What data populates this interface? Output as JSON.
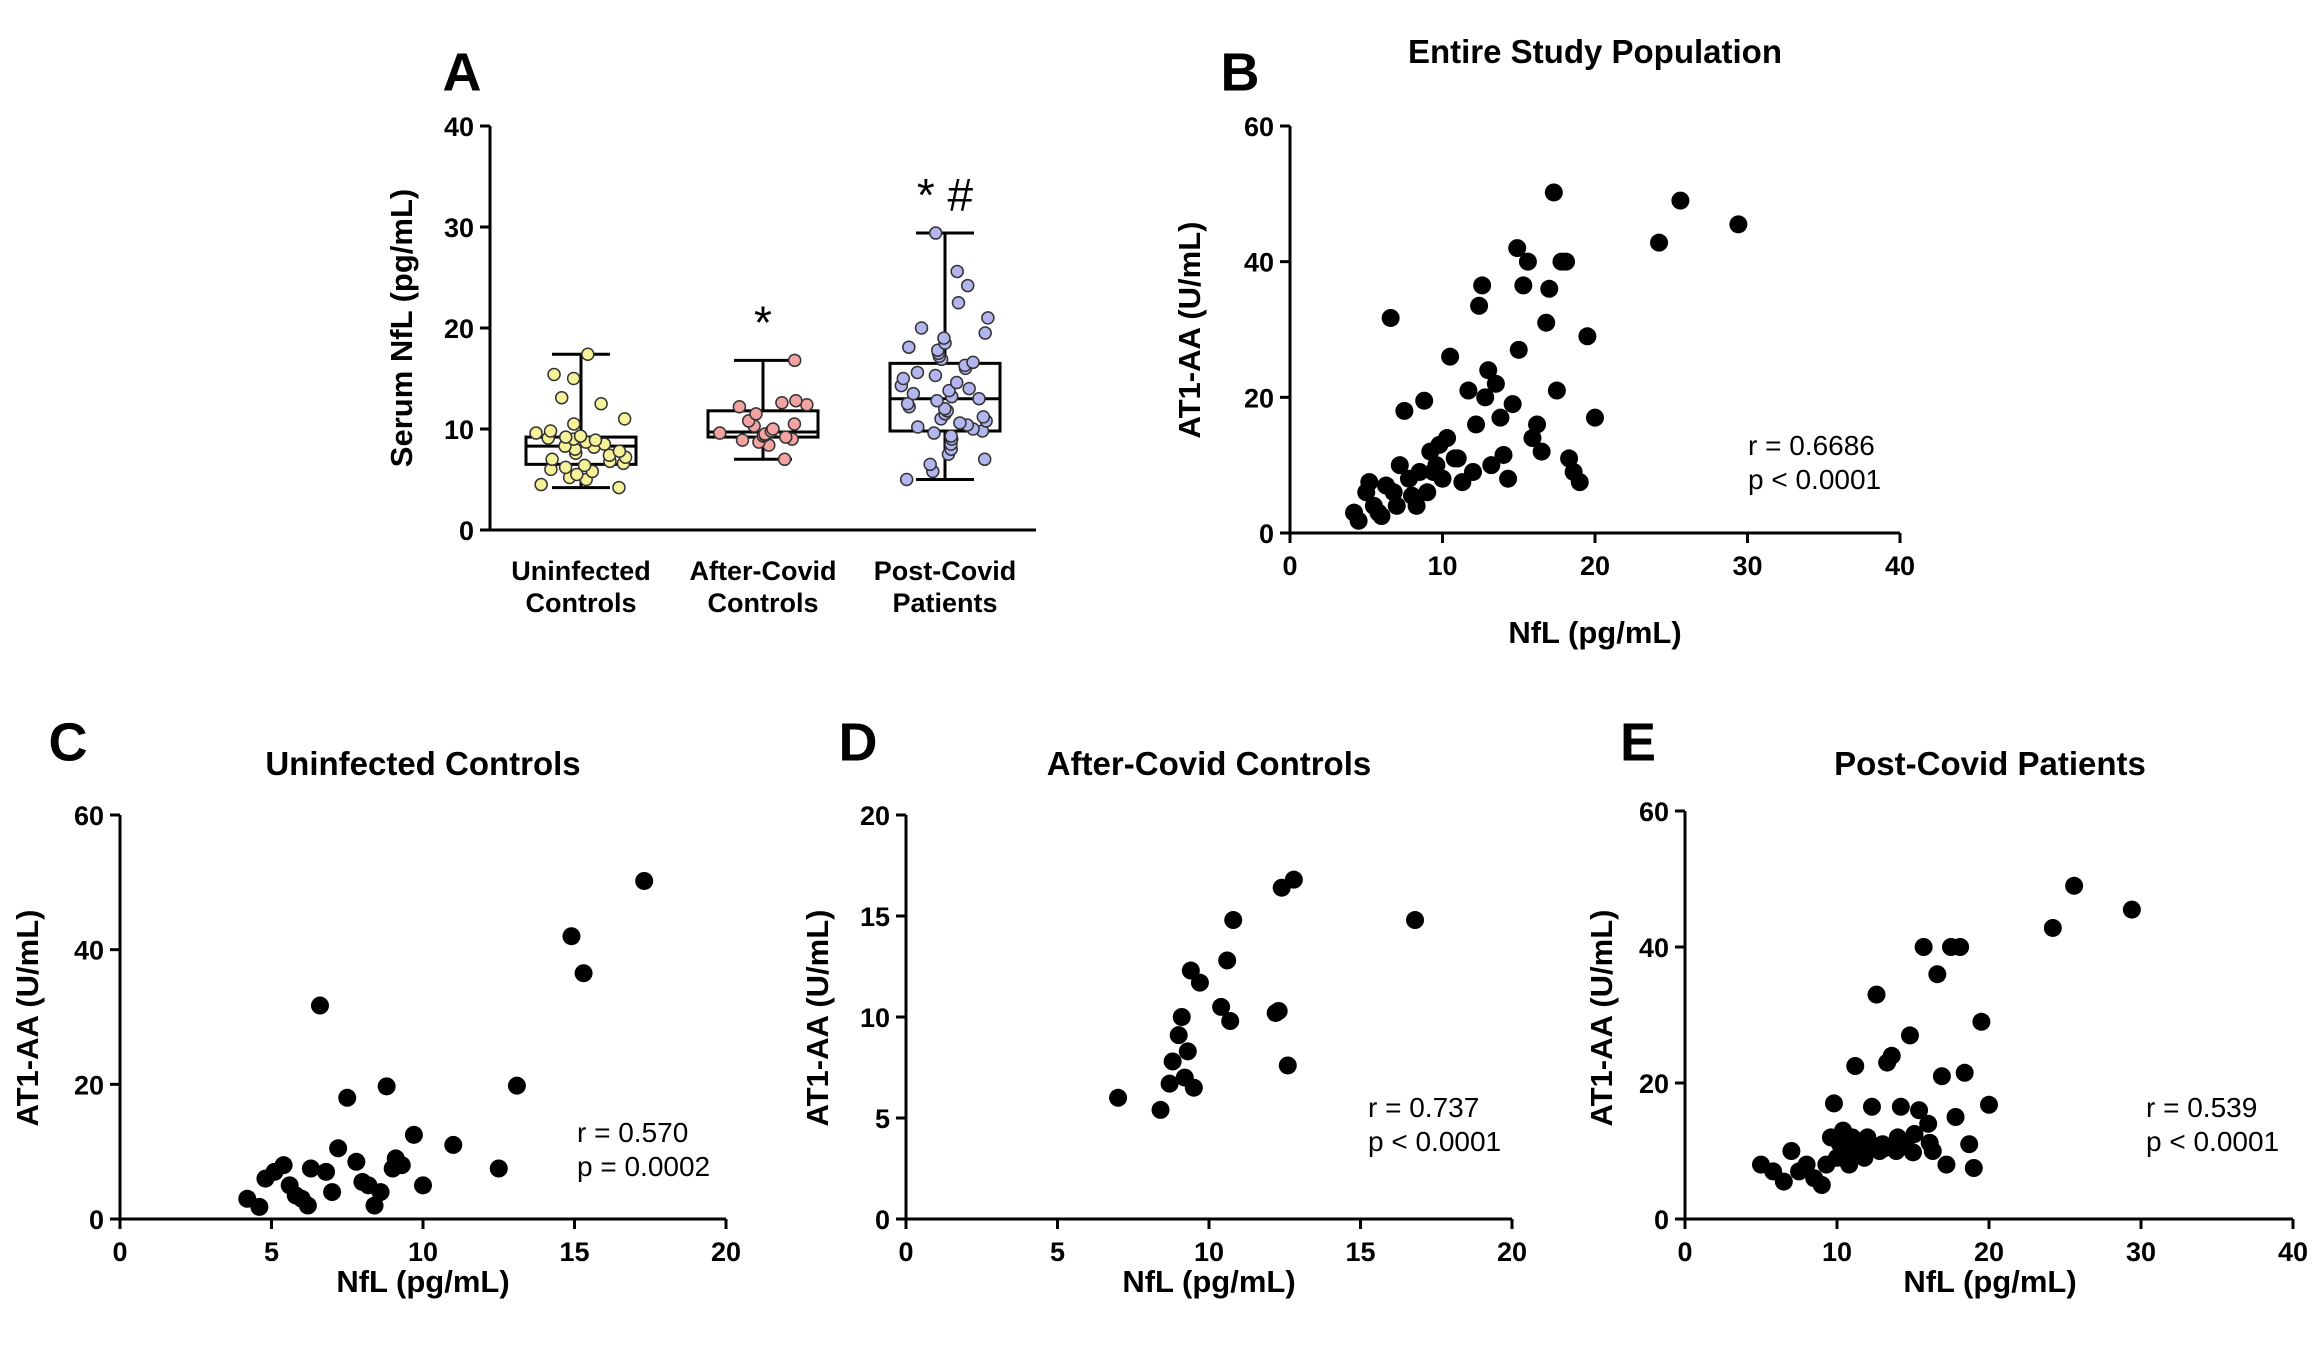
{
  "panels": {
    "A": {
      "letter": "A",
      "chart_data": {
        "type": "box",
        "title": "",
        "ylabel": "Serum NfL (pg/mL)",
        "ylim": [
          0,
          40
        ],
        "yticks": [
          "0",
          "10",
          "20",
          "30",
          "40"
        ],
        "categories": [
          {
            "line1": "Uninfected",
            "line2": "Controls",
            "color": "#f5f29a",
            "min": 4.2,
            "q1": 6.5,
            "median": 8.3,
            "q3": 9.2,
            "max": 17.4,
            "sig": "",
            "points": [
              4.2,
              4.5,
              5.0,
              5.2,
              5.5,
              5.8,
              6.0,
              6.2,
              6.4,
              6.6,
              6.8,
              7.0,
              7.2,
              7.4,
              7.6,
              7.8,
              8.0,
              8.2,
              8.3,
              8.5,
              8.7,
              8.9,
              9.0,
              9.1,
              9.2,
              9.3,
              9.6,
              9.8,
              10.5,
              11.0,
              12.5,
              13.1,
              15.0,
              15.4,
              17.4
            ]
          },
          {
            "line1": "After-Covid",
            "line2": "Controls",
            "color": "#f4a3a3",
            "min": 7.0,
            "q1": 9.2,
            "median": 9.7,
            "q3": 11.8,
            "max": 16.8,
            "sig": "*",
            "points": [
              7.0,
              8.4,
              8.7,
              8.9,
              9.0,
              9.2,
              9.3,
              9.4,
              9.5,
              9.6,
              9.8,
              10.0,
              10.3,
              10.5,
              10.8,
              11.5,
              12.2,
              12.4,
              12.6,
              12.8,
              16.8
            ]
          },
          {
            "line1": "Post-Covid",
            "line2": "Patients",
            "color": "#b3b6ee",
            "min": 5.0,
            "q1": 9.8,
            "median": 13.0,
            "q3": 16.5,
            "max": 29.4,
            "sig": "* #",
            "points": [
              5.0,
              5.8,
              6.5,
              7.0,
              7.5,
              8.0,
              8.5,
              9.0,
              9.3,
              9.6,
              9.8,
              10.0,
              10.2,
              10.4,
              10.6,
              10.8,
              11.0,
              11.2,
              11.5,
              11.8,
              12.0,
              12.2,
              12.5,
              12.8,
              13.0,
              13.2,
              13.5,
              13.8,
              14.0,
              14.3,
              14.6,
              15.0,
              15.3,
              15.6,
              16.0,
              16.3,
              16.6,
              16.9,
              17.2,
              17.5,
              17.8,
              18.1,
              18.5,
              19.0,
              19.5,
              20.0,
              21.0,
              22.5,
              24.2,
              25.6,
              29.4
            ]
          }
        ]
      }
    },
    "B": {
      "letter": "B",
      "chart_data": {
        "type": "scatter",
        "title": "Entire Study Population",
        "xlabel": "NfL (pg/mL)",
        "ylabel": "AT1-AA (U/mL)",
        "xlim": [
          0,
          40
        ],
        "ylim": [
          0,
          60
        ],
        "xticks": [
          "0",
          "10",
          "20",
          "30",
          "40"
        ],
        "yticks": [
          "0",
          "20",
          "40",
          "60"
        ],
        "stats": {
          "r": "r = 0.6686",
          "p": "p < 0.0001"
        },
        "points": [
          [
            4.2,
            3
          ],
          [
            4.5,
            1.8
          ],
          [
            5,
            6
          ],
          [
            5.2,
            7.5
          ],
          [
            5.5,
            4
          ],
          [
            5.8,
            3
          ],
          [
            6,
            2.5
          ],
          [
            6.3,
            7
          ],
          [
            6.6,
            31.7
          ],
          [
            6.8,
            6
          ],
          [
            7,
            4
          ],
          [
            7.2,
            10
          ],
          [
            7.5,
            18
          ],
          [
            7.8,
            8
          ],
          [
            8,
            5.5
          ],
          [
            8.3,
            4
          ],
          [
            8.5,
            9
          ],
          [
            8.8,
            19.5
          ],
          [
            9,
            6
          ],
          [
            9.2,
            12
          ],
          [
            9.4,
            9
          ],
          [
            9.6,
            10
          ],
          [
            9.8,
            13
          ],
          [
            10,
            8
          ],
          [
            10.3,
            14
          ],
          [
            10.5,
            26
          ],
          [
            10.8,
            11
          ],
          [
            11,
            11
          ],
          [
            11.3,
            7.5
          ],
          [
            11.7,
            21
          ],
          [
            12,
            9
          ],
          [
            12.2,
            16
          ],
          [
            12.4,
            33.5
          ],
          [
            12.6,
            36.5
          ],
          [
            12.8,
            20
          ],
          [
            13,
            24
          ],
          [
            13.2,
            10
          ],
          [
            13.5,
            22
          ],
          [
            13.8,
            17
          ],
          [
            14,
            11.5
          ],
          [
            14.3,
            8
          ],
          [
            14.6,
            19
          ],
          [
            14.9,
            42
          ],
          [
            15,
            27
          ],
          [
            15.3,
            36.5
          ],
          [
            15.6,
            40
          ],
          [
            15.9,
            14
          ],
          [
            16.2,
            16
          ],
          [
            16.5,
            12
          ],
          [
            16.8,
            31
          ],
          [
            17,
            36
          ],
          [
            17.3,
            50.2
          ],
          [
            17.5,
            21
          ],
          [
            17.8,
            40
          ],
          [
            18.1,
            40
          ],
          [
            18.3,
            11
          ],
          [
            18.6,
            9
          ],
          [
            19,
            7.5
          ],
          [
            19.5,
            29
          ],
          [
            20,
            17
          ],
          [
            24.2,
            42.8
          ],
          [
            25.6,
            49
          ],
          [
            29.4,
            45.5
          ]
        ]
      }
    },
    "C": {
      "letter": "C",
      "chart_data": {
        "type": "scatter",
        "title": "Uninfected Controls",
        "xlabel": "NfL (pg/mL)",
        "ylabel": "AT1-AA (U/mL)",
        "xlim": [
          0,
          20
        ],
        "ylim": [
          0,
          60
        ],
        "xticks": [
          "0",
          "5",
          "10",
          "15",
          "20"
        ],
        "yticks": [
          "0",
          "20",
          "40",
          "60"
        ],
        "stats": {
          "r": "r = 0.570",
          "p": "p = 0.0002"
        },
        "points": [
          [
            4.2,
            3
          ],
          [
            4.6,
            1.8
          ],
          [
            4.8,
            6
          ],
          [
            5.1,
            7
          ],
          [
            5.4,
            8
          ],
          [
            5.6,
            5
          ],
          [
            5.8,
            3.5
          ],
          [
            6,
            3
          ],
          [
            6.2,
            2
          ],
          [
            6.3,
            7.5
          ],
          [
            6.6,
            31.7
          ],
          [
            6.8,
            7
          ],
          [
            7,
            4
          ],
          [
            7.2,
            10.5
          ],
          [
            7.5,
            18
          ],
          [
            7.8,
            8.5
          ],
          [
            8,
            5.5
          ],
          [
            8.2,
            5
          ],
          [
            8.4,
            2
          ],
          [
            8.6,
            4
          ],
          [
            8.8,
            19.7
          ],
          [
            9,
            7.5
          ],
          [
            9.1,
            9
          ],
          [
            9.3,
            8
          ],
          [
            9.7,
            12.5
          ],
          [
            10,
            5
          ],
          [
            11,
            11
          ],
          [
            12.5,
            7.5
          ],
          [
            13.1,
            19.8
          ],
          [
            14.9,
            42
          ],
          [
            15.3,
            36.5
          ],
          [
            17.3,
            50.2
          ]
        ]
      }
    },
    "D": {
      "letter": "D",
      "chart_data": {
        "type": "scatter",
        "title": "After-Covid Controls",
        "xlabel": "NfL (pg/mL)",
        "ylabel": "AT1-AA (U/mL)",
        "xlim": [
          0,
          20
        ],
        "ylim": [
          0,
          20
        ],
        "xticks": [
          "0",
          "5",
          "10",
          "15",
          "20"
        ],
        "yticks": [
          "0",
          "5",
          "10",
          "15",
          "20"
        ],
        "stats": {
          "r": "r = 0.737",
          "p": "p < 0.0001"
        },
        "points": [
          [
            7,
            6
          ],
          [
            8.4,
            5.4
          ],
          [
            8.7,
            6.7
          ],
          [
            8.8,
            7.8
          ],
          [
            9,
            9.1
          ],
          [
            9.1,
            10
          ],
          [
            9.2,
            7
          ],
          [
            9.3,
            8.3
          ],
          [
            9.4,
            12.3
          ],
          [
            9.5,
            6.5
          ],
          [
            9.7,
            11.7
          ],
          [
            10.4,
            10.5
          ],
          [
            10.6,
            12.8
          ],
          [
            10.7,
            9.8
          ],
          [
            10.8,
            14.8
          ],
          [
            12.2,
            10.2
          ],
          [
            12.3,
            10.3
          ],
          [
            12.4,
            16.4
          ],
          [
            12.6,
            7.6
          ],
          [
            12.8,
            16.8
          ],
          [
            16.8,
            14.8
          ]
        ]
      }
    },
    "E": {
      "letter": "E",
      "chart_data": {
        "type": "scatter",
        "title": "Post-Covid Patients",
        "xlabel": "NfL (pg/mL)",
        "ylabel": "AT1-AA (U/mL)",
        "xlim": [
          0,
          40
        ],
        "ylim": [
          0,
          60
        ],
        "xticks": [
          "0",
          "10",
          "20",
          "30",
          "40"
        ],
        "yticks": [
          "0",
          "20",
          "40",
          "60"
        ],
        "stats": {
          "r": "r = 0.539",
          "p": "p < 0.0001"
        },
        "points": [
          [
            5,
            8
          ],
          [
            5.8,
            7
          ],
          [
            6.5,
            5.5
          ],
          [
            7,
            10
          ],
          [
            7.5,
            7
          ],
          [
            8,
            8
          ],
          [
            8.5,
            6
          ],
          [
            9,
            5
          ],
          [
            9.3,
            8
          ],
          [
            9.6,
            12
          ],
          [
            9.8,
            17
          ],
          [
            10,
            9
          ],
          [
            10.2,
            11
          ],
          [
            10.4,
            13
          ],
          [
            10.6,
            10
          ],
          [
            10.8,
            8
          ],
          [
            11,
            12
          ],
          [
            11.2,
            22.5
          ],
          [
            11.5,
            10
          ],
          [
            11.8,
            9
          ],
          [
            12,
            12
          ],
          [
            12.3,
            16.5
          ],
          [
            12.6,
            33
          ],
          [
            12.8,
            10
          ],
          [
            13,
            11
          ],
          [
            13.3,
            23
          ],
          [
            13.6,
            24
          ],
          [
            13.9,
            10
          ],
          [
            14.2,
            16.5
          ],
          [
            14.5,
            11
          ],
          [
            14.8,
            27
          ],
          [
            15.1,
            12.5
          ],
          [
            15.4,
            16
          ],
          [
            15.7,
            40
          ],
          [
            16,
            14
          ],
          [
            16.3,
            10
          ],
          [
            16.6,
            36
          ],
          [
            16.9,
            21
          ],
          [
            17.2,
            8
          ],
          [
            17.5,
            40
          ],
          [
            17.8,
            15
          ],
          [
            18.1,
            40
          ],
          [
            18.4,
            21.5
          ],
          [
            18.7,
            11
          ],
          [
            19,
            7.5
          ],
          [
            19.5,
            29
          ],
          [
            20,
            16.8
          ],
          [
            24.2,
            42.8
          ],
          [
            25.6,
            49
          ],
          [
            29.4,
            45.5
          ],
          [
            10.5,
            11.5
          ],
          [
            11.3,
            9.5
          ],
          [
            12.1,
            11.2
          ],
          [
            13.1,
            10.4
          ],
          [
            14,
            12
          ],
          [
            15,
            9.8
          ],
          [
            16.1,
            11.2
          ]
        ]
      }
    }
  }
}
